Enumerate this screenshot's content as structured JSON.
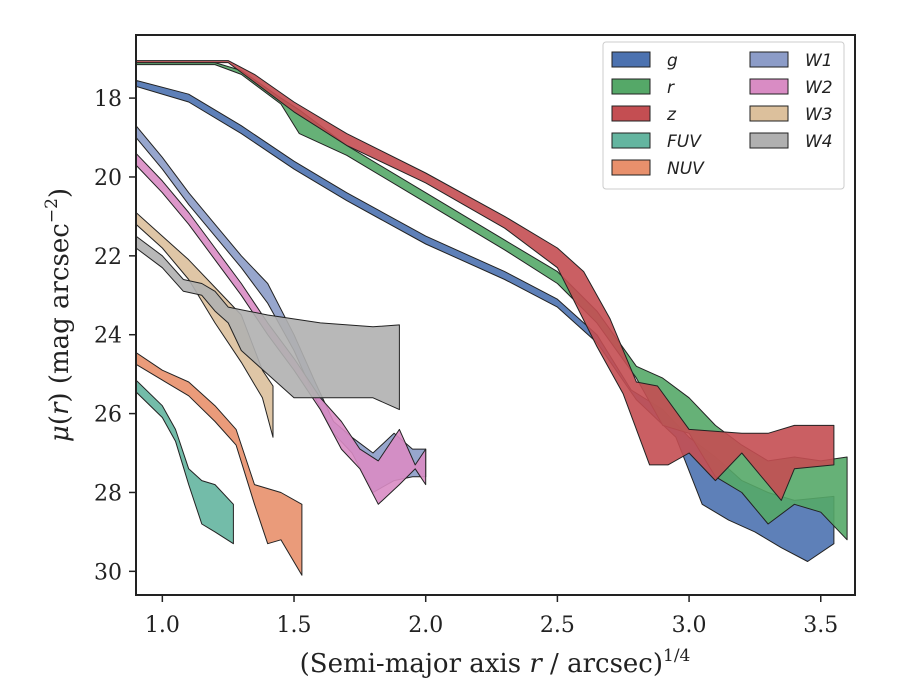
{
  "chart_data": {
    "type": "area",
    "xlabel": "(Semi-major axis r / arcsec)^{1/4}",
    "ylabel": "μ(r) (mag arcsec^{−2})",
    "xlim": [
      0.9,
      3.63
    ],
    "ylim": [
      30.6,
      16.4
    ],
    "y_inverted": true,
    "x_ticks": [
      "1.0",
      "1.5",
      "2.0",
      "2.5",
      "3.0",
      "3.5"
    ],
    "y_ticks": [
      "18",
      "20",
      "22",
      "24",
      "26",
      "28",
      "30"
    ],
    "x_tick_values": [
      1.0,
      1.5,
      2.0,
      2.5,
      3.0,
      3.5
    ],
    "y_tick_values": [
      18,
      20,
      22,
      24,
      26,
      28,
      30
    ],
    "grid": false,
    "legend_position": "top-right",
    "legend_columns": 2,
    "series": [
      {
        "name": "g",
        "color": "#4c72b0",
        "upper": [
          [
            0.9,
            17.55
          ],
          [
            1.1,
            17.9
          ],
          [
            1.3,
            18.7
          ],
          [
            1.5,
            19.6
          ],
          [
            1.7,
            20.4
          ],
          [
            2.0,
            21.5
          ],
          [
            2.3,
            22.4
          ],
          [
            2.5,
            23.1
          ],
          [
            2.65,
            24.0
          ],
          [
            2.78,
            25.4
          ],
          [
            2.9,
            25.9
          ],
          [
            3.0,
            26.6
          ],
          [
            3.1,
            27.1
          ],
          [
            3.2,
            27.7
          ],
          [
            3.3,
            28.0
          ],
          [
            3.4,
            28.2
          ],
          [
            3.55,
            28.1
          ]
        ],
        "lower": [
          [
            3.55,
            29.3
          ],
          [
            3.45,
            29.75
          ],
          [
            3.35,
            29.4
          ],
          [
            3.25,
            29.0
          ],
          [
            3.15,
            28.7
          ],
          [
            3.05,
            28.3
          ],
          [
            2.95,
            26.6
          ],
          [
            2.8,
            25.65
          ],
          [
            2.65,
            24.2
          ],
          [
            2.5,
            23.3
          ],
          [
            2.3,
            22.6
          ],
          [
            2.0,
            21.7
          ],
          [
            1.7,
            20.6
          ],
          [
            1.5,
            19.8
          ],
          [
            1.3,
            18.9
          ],
          [
            1.1,
            18.1
          ],
          [
            0.9,
            17.7
          ]
        ]
      },
      {
        "name": "r",
        "color": "#55a868",
        "upper": [
          [
            0.9,
            17.1
          ],
          [
            1.2,
            17.1
          ],
          [
            1.3,
            17.3
          ],
          [
            1.45,
            18.0
          ],
          [
            1.52,
            18.3
          ],
          [
            1.7,
            19.2
          ],
          [
            2.0,
            20.4
          ],
          [
            2.3,
            21.6
          ],
          [
            2.5,
            22.4
          ],
          [
            2.65,
            23.4
          ],
          [
            2.8,
            24.8
          ],
          [
            2.9,
            25.1
          ],
          [
            3.0,
            25.6
          ],
          [
            3.1,
            26.3
          ],
          [
            3.2,
            26.8
          ],
          [
            3.3,
            27.2
          ],
          [
            3.4,
            27.1
          ],
          [
            3.5,
            27.2
          ],
          [
            3.6,
            27.1
          ]
        ],
        "lower": [
          [
            3.6,
            29.2
          ],
          [
            3.5,
            28.5
          ],
          [
            3.4,
            28.3
          ],
          [
            3.3,
            28.8
          ],
          [
            3.2,
            28.0
          ],
          [
            3.1,
            27.6
          ],
          [
            3.0,
            26.5
          ],
          [
            2.9,
            26.3
          ],
          [
            2.8,
            25.1
          ],
          [
            2.65,
            23.7
          ],
          [
            2.5,
            22.7
          ],
          [
            2.3,
            21.85
          ],
          [
            2.0,
            20.65
          ],
          [
            1.7,
            19.45
          ],
          [
            1.52,
            18.9
          ],
          [
            1.45,
            18.15
          ],
          [
            1.3,
            17.4
          ],
          [
            1.2,
            17.15
          ],
          [
            0.9,
            17.15
          ]
        ]
      },
      {
        "name": "z",
        "color": "#c44e52",
        "upper": [
          [
            0.9,
            17.05
          ],
          [
            1.25,
            17.05
          ],
          [
            1.35,
            17.4
          ],
          [
            1.5,
            18.1
          ],
          [
            1.7,
            18.9
          ],
          [
            2.0,
            19.9
          ],
          [
            2.3,
            21.0
          ],
          [
            2.5,
            21.8
          ],
          [
            2.6,
            22.4
          ],
          [
            2.7,
            23.6
          ],
          [
            2.8,
            25.2
          ],
          [
            2.88,
            25.3
          ],
          [
            3.0,
            26.4
          ],
          [
            3.2,
            26.5
          ],
          [
            3.3,
            26.5
          ],
          [
            3.4,
            26.3
          ],
          [
            3.55,
            26.3
          ]
        ],
        "lower": [
          [
            3.55,
            27.3
          ],
          [
            3.4,
            27.4
          ],
          [
            3.35,
            28.2
          ],
          [
            3.3,
            27.8
          ],
          [
            3.2,
            27.0
          ],
          [
            3.1,
            27.7
          ],
          [
            3.0,
            27.0
          ],
          [
            2.92,
            27.3
          ],
          [
            2.85,
            27.3
          ],
          [
            2.75,
            25.5
          ],
          [
            2.65,
            24.3
          ],
          [
            2.5,
            22.3
          ],
          [
            2.3,
            21.3
          ],
          [
            2.0,
            20.15
          ],
          [
            1.7,
            19.2
          ],
          [
            1.5,
            18.35
          ],
          [
            1.35,
            17.6
          ],
          [
            1.25,
            17.1
          ],
          [
            0.9,
            17.1
          ]
        ]
      },
      {
        "name": "FUV",
        "color": "#64b5a0",
        "upper": [
          [
            0.9,
            25.15
          ],
          [
            1.0,
            25.8
          ],
          [
            1.05,
            26.4
          ],
          [
            1.1,
            27.4
          ],
          [
            1.15,
            27.7
          ],
          [
            1.2,
            27.8
          ],
          [
            1.27,
            28.3
          ]
        ],
        "lower": [
          [
            1.27,
            29.3
          ],
          [
            1.2,
            29.0
          ],
          [
            1.15,
            28.8
          ],
          [
            1.1,
            27.8
          ],
          [
            1.05,
            26.7
          ],
          [
            1.0,
            26.1
          ],
          [
            0.9,
            25.45
          ]
        ]
      },
      {
        "name": "NUV",
        "color": "#e8906c",
        "upper": [
          [
            0.9,
            24.45
          ],
          [
            1.0,
            24.9
          ],
          [
            1.1,
            25.2
          ],
          [
            1.2,
            25.8
          ],
          [
            1.28,
            26.4
          ],
          [
            1.35,
            27.8
          ],
          [
            1.45,
            28.0
          ],
          [
            1.53,
            28.3
          ]
        ],
        "lower": [
          [
            1.53,
            30.1
          ],
          [
            1.45,
            29.2
          ],
          [
            1.4,
            29.3
          ],
          [
            1.35,
            28.3
          ],
          [
            1.28,
            26.8
          ],
          [
            1.2,
            26.2
          ],
          [
            1.1,
            25.55
          ],
          [
            1.0,
            25.15
          ],
          [
            0.9,
            24.75
          ]
        ]
      },
      {
        "name": "W1",
        "color": "#8c9cc8",
        "upper": [
          [
            0.9,
            18.7
          ],
          [
            1.0,
            19.5
          ],
          [
            1.1,
            20.4
          ],
          [
            1.2,
            21.2
          ],
          [
            1.3,
            22.0
          ],
          [
            1.4,
            22.7
          ],
          [
            1.5,
            24.0
          ],
          [
            1.58,
            25.2
          ],
          [
            1.65,
            26.2
          ],
          [
            1.72,
            26.6
          ],
          [
            1.8,
            27.0
          ],
          [
            1.88,
            26.5
          ],
          [
            1.95,
            26.9
          ],
          [
            2.0,
            26.9
          ]
        ],
        "lower": [
          [
            2.0,
            27.6
          ],
          [
            1.95,
            27.6
          ],
          [
            1.88,
            27.7
          ],
          [
            1.8,
            28.0
          ],
          [
            1.72,
            27.0
          ],
          [
            1.65,
            26.5
          ],
          [
            1.58,
            25.6
          ],
          [
            1.5,
            24.4
          ],
          [
            1.4,
            23.2
          ],
          [
            1.3,
            22.3
          ],
          [
            1.2,
            21.5
          ],
          [
            1.1,
            20.7
          ],
          [
            1.0,
            19.8
          ],
          [
            0.9,
            19.0
          ]
        ]
      },
      {
        "name": "W2",
        "color": "#d98cc4",
        "upper": [
          [
            0.9,
            19.4
          ],
          [
            1.0,
            20.1
          ],
          [
            1.1,
            20.9
          ],
          [
            1.2,
            21.8
          ],
          [
            1.3,
            22.7
          ],
          [
            1.4,
            23.7
          ],
          [
            1.5,
            24.6
          ],
          [
            1.6,
            25.6
          ],
          [
            1.68,
            26.2
          ],
          [
            1.75,
            26.9
          ],
          [
            1.82,
            27.2
          ],
          [
            1.9,
            26.4
          ],
          [
            1.96,
            27.3
          ],
          [
            2.0,
            26.9
          ]
        ],
        "lower": [
          [
            2.0,
            27.8
          ],
          [
            1.96,
            27.4
          ],
          [
            1.9,
            27.8
          ],
          [
            1.82,
            28.3
          ],
          [
            1.75,
            27.4
          ],
          [
            1.68,
            26.9
          ],
          [
            1.6,
            25.9
          ],
          [
            1.5,
            24.9
          ],
          [
            1.4,
            24.0
          ],
          [
            1.3,
            23.0
          ],
          [
            1.2,
            22.1
          ],
          [
            1.1,
            21.2
          ],
          [
            1.0,
            20.4
          ],
          [
            0.9,
            19.7
          ]
        ]
      },
      {
        "name": "W3",
        "color": "#dcc09c",
        "upper": [
          [
            0.9,
            20.9
          ],
          [
            1.0,
            21.5
          ],
          [
            1.1,
            22.1
          ],
          [
            1.2,
            22.8
          ],
          [
            1.3,
            23.5
          ],
          [
            1.38,
            24.9
          ],
          [
            1.42,
            25.3
          ]
        ],
        "lower": [
          [
            1.42,
            26.6
          ],
          [
            1.38,
            25.6
          ],
          [
            1.3,
            24.7
          ],
          [
            1.2,
            23.7
          ],
          [
            1.1,
            22.6
          ],
          [
            1.0,
            21.8
          ],
          [
            0.9,
            21.2
          ]
        ]
      },
      {
        "name": "W4",
        "color": "#b0b0b0",
        "upper": [
          [
            0.9,
            21.5
          ],
          [
            1.0,
            22.0
          ],
          [
            1.08,
            22.6
          ],
          [
            1.15,
            22.7
          ],
          [
            1.2,
            22.9
          ],
          [
            1.25,
            23.3
          ],
          [
            1.4,
            23.5
          ],
          [
            1.6,
            23.7
          ],
          [
            1.8,
            23.8
          ],
          [
            1.9,
            23.75
          ]
        ],
        "lower": [
          [
            1.9,
            25.9
          ],
          [
            1.8,
            25.6
          ],
          [
            1.5,
            25.6
          ],
          [
            1.3,
            24.4
          ],
          [
            1.25,
            23.7
          ],
          [
            1.2,
            23.4
          ],
          [
            1.15,
            23.0
          ],
          [
            1.08,
            22.9
          ],
          [
            1.0,
            22.3
          ],
          [
            0.9,
            21.8
          ]
        ]
      }
    ]
  }
}
